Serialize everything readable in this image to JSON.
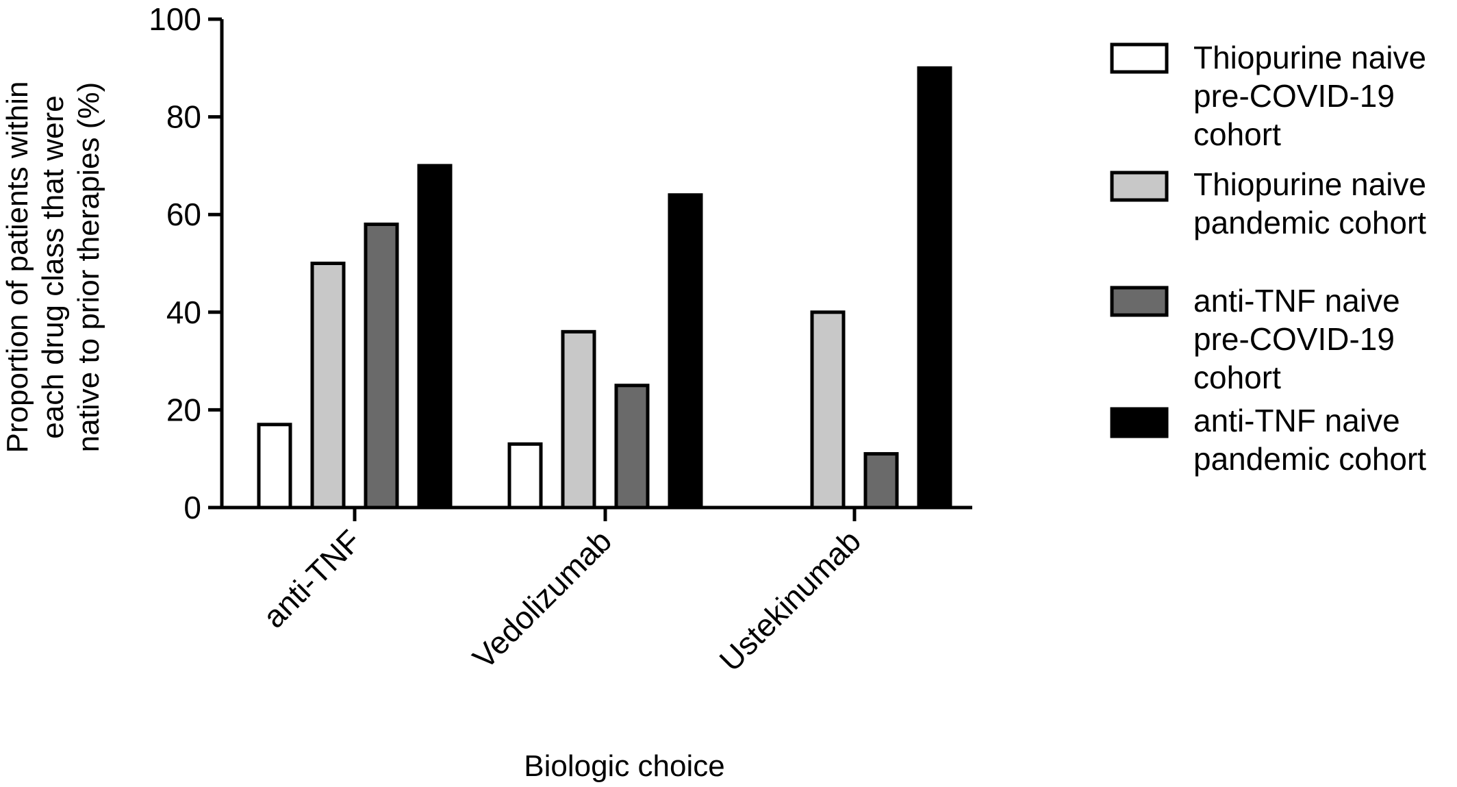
{
  "chart_data": {
    "type": "bar",
    "categories": [
      "anti-TNF",
      "Vedolizumab",
      "Ustekinumab"
    ],
    "series": [
      {
        "name": "Thiopurine naive pre-COVID-19 cohort",
        "values": [
          17,
          13,
          0
        ],
        "color": "#ffffff"
      },
      {
        "name": "Thiopurine naive pandemic cohort",
        "values": [
          50,
          36,
          40
        ],
        "color": "#c8c8c8"
      },
      {
        "name": "anti-TNF naive pre-COVID-19 cohort",
        "values": [
          58,
          25,
          11
        ],
        "color": "#6a6a6a"
      },
      {
        "name": "anti-TNF naive pandemic cohort",
        "values": [
          70,
          64,
          90
        ],
        "color": "#000000"
      }
    ],
    "legend_lines": [
      [
        "Thiopurine naive",
        "pre-COVID-19",
        "cohort"
      ],
      [
        "Thiopurine naive",
        "pandemic cohort"
      ],
      [
        "anti-TNF naive",
        "pre-COVID-19",
        "cohort"
      ],
      [
        "anti-TNF naive",
        "pandemic cohort"
      ]
    ],
    "ylabel_lines": [
      "Proportion of patients within",
      "each drug class that were",
      "native to prior therapies (%)"
    ],
    "xlabel": "Biologic choice",
    "ylim": [
      0,
      100
    ],
    "yticks": [
      0,
      20,
      40,
      60,
      80,
      100
    ],
    "legend_position": "right",
    "grid": false
  }
}
